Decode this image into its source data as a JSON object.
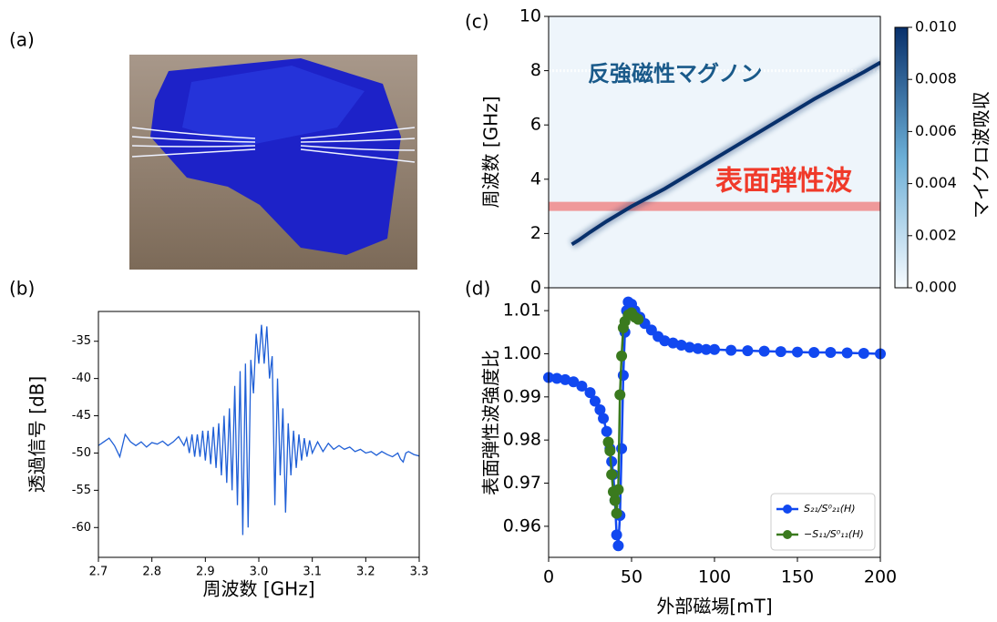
{
  "chart_data": [
    {
      "type": "photo",
      "label": "(a)"
    },
    {
      "type": "line",
      "label": "(b)",
      "xlabel": "周波数 [GHz]",
      "ylabel": "透過信号 [dB]",
      "xlim": [
        2.7,
        3.3
      ],
      "ylim": [
        -64,
        -31
      ],
      "xticks": [
        2.7,
        2.8,
        2.9,
        {
          "value": 3,
          "label": "3.0"
        },
        3.1,
        3.2,
        3.3
      ],
      "yticks": [
        -35,
        -40,
        -45,
        -50,
        -55,
        -60
      ],
      "series": [
        {
          "color": "#1f5fd6",
          "x": [
            2.7,
            2.71,
            2.72,
            2.73,
            2.74,
            2.745,
            2.75,
            2.76,
            2.77,
            2.78,
            2.79,
            2.8,
            2.81,
            2.82,
            2.83,
            2.84,
            2.85,
            2.86,
            2.865,
            2.87,
            2.875,
            2.88,
            2.885,
            2.89,
            2.895,
            2.9,
            2.905,
            2.91,
            2.915,
            2.92,
            2.925,
            2.93,
            2.935,
            2.94,
            2.945,
            2.95,
            2.955,
            2.96,
            2.965,
            2.97,
            2.975,
            2.98,
            2.985,
            2.99,
            2.995,
            3.0,
            3.005,
            3.01,
            3.015,
            3.02,
            3.025,
            3.03,
            3.035,
            3.04,
            3.045,
            3.05,
            3.055,
            3.06,
            3.065,
            3.07,
            3.075,
            3.08,
            3.085,
            3.09,
            3.095,
            3.1,
            3.11,
            3.12,
            3.13,
            3.14,
            3.15,
            3.16,
            3.17,
            3.18,
            3.19,
            3.2,
            3.21,
            3.22,
            3.23,
            3.24,
            3.25,
            3.26,
            3.265,
            3.27,
            3.275,
            3.28,
            3.29,
            3.3
          ],
          "values": [
            -49,
            -48.5,
            -48,
            -49,
            -50.5,
            -49,
            -47.5,
            -48.5,
            -49,
            -48.5,
            -49.2,
            -48.6,
            -48.8,
            -48.4,
            -49,
            -48.5,
            -47.8,
            -49,
            -48,
            -50,
            -47.5,
            -50.5,
            -47.5,
            -50.5,
            -47,
            -51,
            -47,
            -51.5,
            -46.5,
            -52,
            -46,
            -53,
            -45,
            -54,
            -44,
            -55,
            -41,
            -57,
            -39,
            -61,
            -38,
            -60,
            -37.5,
            -42,
            -34,
            -38,
            -32.8,
            -38,
            -33,
            -40,
            -37,
            -57,
            -40,
            -53,
            -44,
            -58,
            -46,
            -53,
            -47,
            -52,
            -47.5,
            -51,
            -48,
            -50.5,
            -48.3,
            -50,
            -48.5,
            -49.8,
            -48.7,
            -49.5,
            -49,
            -49.5,
            -49.2,
            -49.8,
            -49.5,
            -50,
            -49.8,
            -50.3,
            -49.8,
            -50.2,
            -50.5,
            -50,
            -50.8,
            -51.2,
            -50,
            -49.8,
            -50.2,
            -50.4
          ]
        }
      ]
    },
    {
      "type": "heatmap",
      "label": "(c)",
      "ylabel": "周波数 [GHz]",
      "xlim": [
        0,
        200
      ],
      "ylim": [
        0,
        10
      ],
      "yticks": [
        0,
        2,
        4,
        6,
        8,
        10
      ],
      "background": "#eef5fb",
      "hlines": [
        {
          "value": 8,
          "color": "#ffffff"
        },
        {
          "value": 3,
          "color": "#f09090"
        }
      ],
      "annotations": [
        {
          "text": "反強磁性マグノン",
          "color": "#1a5a8a"
        },
        {
          "text": "表面弾性波",
          "color": "#f03a2a"
        }
      ],
      "series": [
        {
          "color": "#08306b",
          "x": [
            14,
            18,
            25,
            35,
            50,
            70,
            100,
            130,
            160,
            190,
            200
          ],
          "values": [
            1.6,
            1.75,
            2.05,
            2.45,
            3.0,
            3.65,
            4.75,
            5.85,
            6.95,
            7.95,
            8.3
          ]
        }
      ],
      "colorbar": {
        "label": "マイクロ波吸収",
        "lim": [
          0,
          0.01
        ],
        "colors": [
          "#f7fbff",
          "#6baed6",
          "#08306b"
        ],
        "ticks": [
          {
            "value": 0,
            "label": "0.000"
          },
          {
            "value": 0.002,
            "label": "0.002"
          },
          {
            "value": 0.004,
            "label": "0.004"
          },
          {
            "value": 0.006,
            "label": "0.006"
          },
          {
            "value": 0.008,
            "label": "0.008"
          },
          {
            "value": 0.01,
            "label": "0.010"
          }
        ]
      }
    },
    {
      "type": "scatter-line",
      "label": "(d)",
      "xlabel": "外部磁場[mT]",
      "ylabel": "表面弾性波強度比",
      "xlim": [
        0,
        200
      ],
      "ylim": [
        0.9528,
        1.0153
      ],
      "xticks": [
        0,
        50,
        100,
        150,
        200
      ],
      "yticks": [
        0.96,
        0.97,
        0.98,
        0.99,
        {
          "value": 1,
          "label": "1.00"
        },
        1.01
      ],
      "legend": "lower right",
      "series": [
        {
          "name": "S₂₁/S⁰₂₁(H)",
          "color": "#1148f0",
          "x": [
            0,
            5,
            10,
            15,
            20,
            25,
            28,
            31,
            33,
            35,
            37,
            38,
            39,
            40,
            41,
            42,
            43,
            44,
            45,
            46,
            47,
            48,
            50,
            52,
            55,
            58,
            62,
            66,
            70,
            75,
            80,
            85,
            90,
            95,
            100,
            110,
            120,
            130,
            140,
            150,
            160,
            170,
            180,
            190,
            200
          ],
          "values": [
            0.9945,
            0.9943,
            0.994,
            0.9935,
            0.9925,
            0.991,
            0.989,
            0.987,
            0.985,
            0.982,
            0.978,
            0.975,
            0.972,
            0.966,
            0.958,
            0.9555,
            0.9625,
            0.978,
            0.995,
            1.005,
            1.01,
            1.012,
            1.0115,
            1.01,
            1.0085,
            1.007,
            1.0055,
            1.004,
            1.003,
            1.0025,
            1.002,
            1.0015,
            1.0012,
            1.001,
            1.001,
            1.0008,
            1.0007,
            1.0006,
            1.0005,
            1.0004,
            1.0003,
            1.0003,
            1.0002,
            1.0001,
            1.0
          ]
        },
        {
          "name": "−S₁₁/S⁰₁₁(H)",
          "color": "#3a7a1e",
          "x": [
            36,
            37,
            38,
            39,
            40,
            41,
            42,
            43,
            44,
            45,
            46,
            48,
            50,
            52,
            54
          ],
          "values": [
            0.9795,
            0.9775,
            0.972,
            0.968,
            0.966,
            0.963,
            0.9685,
            0.9905,
            0.9995,
            1.006,
            1.0075,
            1.009,
            1.0095,
            1.0085,
            1.008
          ]
        }
      ]
    }
  ]
}
